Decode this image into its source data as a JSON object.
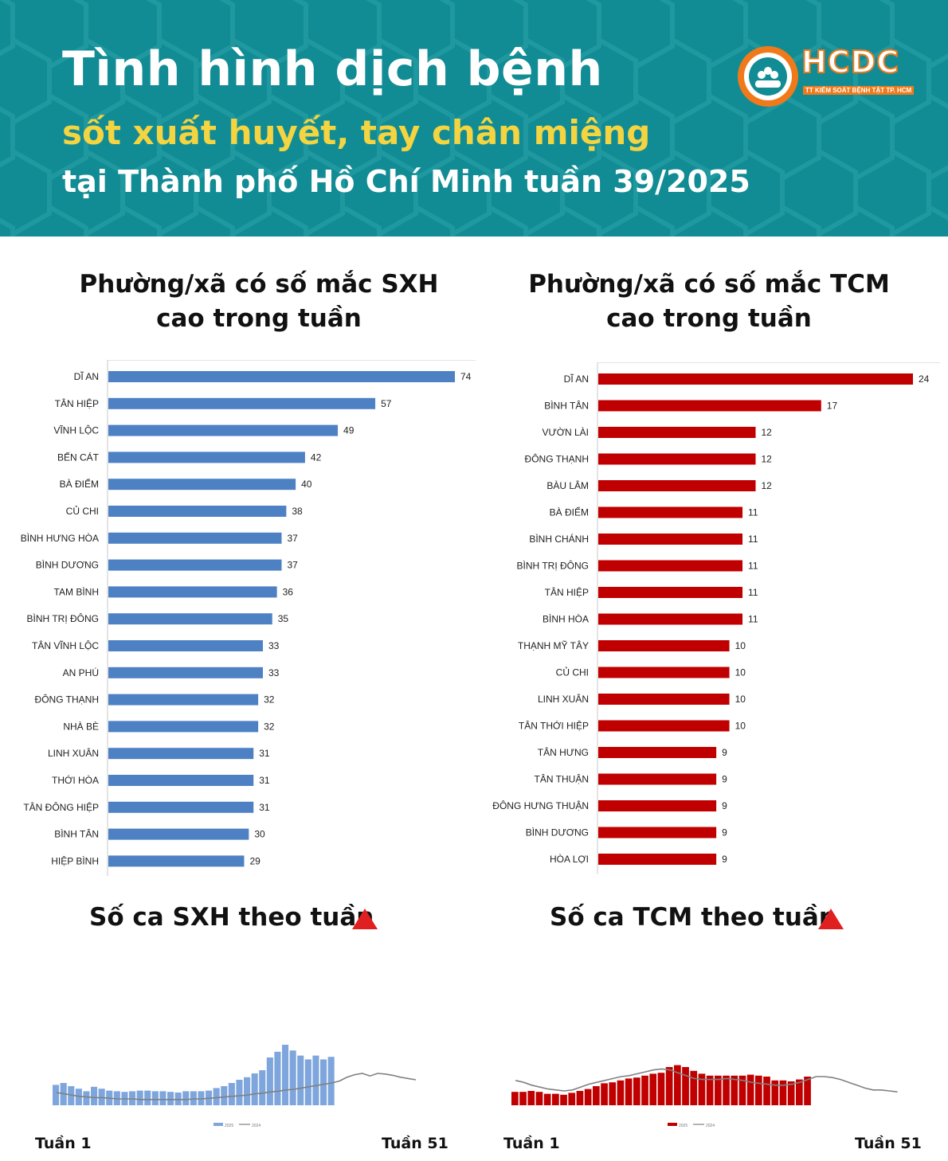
{
  "header": {
    "title": "Tình hình dịch bệnh",
    "subtitle": "sốt xuất huyết, tay chân miệng",
    "subtitle2": "tại Thành phố Hồ Chí Minh tuần 39/2025",
    "logo_text": "HCDC",
    "logo_caption": "TT KIỂM SOÁT BỆNH TẬT TP. HCM"
  },
  "colors": {
    "header_bg": "#128c94",
    "sxh_bar": "#4e81c4",
    "sxh_weekly": "#7ea6dd",
    "tcm_bar": "#c00000",
    "line_2024": "#808080",
    "highlight": "#f4d440",
    "logo_orange": "#f07a1a"
  },
  "icons": {
    "trend": "red-up-triangle-icon",
    "logo": "hcdc-logo-icon"
  },
  "sections": {
    "sxh_wards_title": "Phường/xã có số mắc SXH cao trong tuần",
    "tcm_wards_title": "Phường/xã có số mắc TCM cao trong tuần",
    "sxh_weekly_title": "Số ca SXH theo tuần",
    "tcm_weekly_title": "Số ca TCM theo tuần",
    "week_start": "Tuần 1",
    "week_end": "Tuần 51"
  },
  "chart_data": [
    {
      "type": "bar",
      "orientation": "horizontal",
      "title": "Phường/xã có số mắc SXH cao trong tuần",
      "categories": [
        "DĨ AN",
        "TÂN HIỆP",
        "VĨNH LỘC",
        "BẾN CÁT",
        "BÀ ĐIỂM",
        "CỦ CHI",
        "BÌNH HƯNG HÒA",
        "BÌNH DƯƠNG",
        "TAM BÌNH",
        "BÌNH TRỊ ĐÔNG",
        "TÂN VĨNH LỘC",
        "AN PHÚ",
        "ĐÔNG THẠNH",
        "NHÀ BÈ",
        "LINH XUÂN",
        "THỚI HÒA",
        "TÂN ĐÔNG HIỆP",
        "BÌNH TÂN",
        "HIỆP BÌNH"
      ],
      "values": [
        74,
        57,
        49,
        42,
        40,
        38,
        37,
        37,
        36,
        35,
        33,
        33,
        32,
        32,
        31,
        31,
        31,
        30,
        29
      ],
      "xlim": [
        0,
        80
      ],
      "data_labels": true,
      "color": "#4e81c4"
    },
    {
      "type": "bar",
      "orientation": "horizontal",
      "title": "Phường/xã có số mắc TCM cao trong tuần",
      "categories": [
        "DĨ AN",
        "BÌNH TÂN",
        "VƯỜN LÀI",
        "ĐÔNG THẠNH",
        "BÀU LÂM",
        "BÀ ĐIỂM",
        "BÌNH CHÁNH",
        "BÌNH TRỊ ĐÔNG",
        "TÂN HIỆP",
        "BÌNH HÒA",
        "THẠNH MỸ TÂY",
        "CỦ CHI",
        "LINH XUÂN",
        "TÂN THỚI HIỆP",
        "TÂN HƯNG",
        "TÂN THUẬN",
        "ĐÔNG HƯNG THUẬN",
        "BÌNH DƯƠNG",
        "HÒA LỢI"
      ],
      "values": [
        24,
        17,
        12,
        12,
        12,
        11,
        11,
        11,
        11,
        11,
        10,
        10,
        10,
        10,
        9,
        9,
        9,
        9,
        9
      ],
      "xlim": [
        0,
        26
      ],
      "data_labels": true,
      "color": "#c00000"
    },
    {
      "type": "bar",
      "title": "Số ca SXH theo tuần",
      "x_range": [
        "Tuần 1",
        "Tuần 51"
      ],
      "series": [
        {
          "name": "2025",
          "kind": "bar",
          "values": [
            32,
            35,
            30,
            26,
            22,
            29,
            26,
            23,
            22,
            21,
            22,
            23,
            23,
            22,
            22,
            21,
            20,
            22,
            22,
            22,
            23,
            27,
            30,
            35,
            40,
            44,
            50,
            55,
            75,
            84,
            95,
            86,
            78,
            72,
            78,
            72,
            76
          ]
        },
        {
          "name": "2024",
          "kind": "line",
          "values": [
            20,
            18,
            16,
            14,
            13,
            12,
            12,
            11,
            10,
            10,
            10,
            9,
            9,
            9,
            9,
            9,
            9,
            9,
            10,
            10,
            11,
            12,
            13,
            14,
            15,
            16,
            18,
            19,
            21,
            22,
            24,
            25,
            27,
            29,
            31,
            33,
            35,
            38,
            44,
            48,
            50,
            46,
            50,
            49,
            47,
            44,
            42,
            40
          ]
        }
      ],
      "legend": "bottom"
    },
    {
      "type": "bar",
      "title": "Số ca TCM theo tuần",
      "x_range": [
        "Tuần 1",
        "Tuần 51"
      ],
      "series": [
        {
          "name": "2025",
          "kind": "bar",
          "values": [
            14,
            14,
            15,
            14,
            12,
            12,
            11,
            13,
            15,
            17,
            20,
            23,
            24,
            26,
            28,
            29,
            31,
            33,
            34,
            40,
            42,
            40,
            36,
            33,
            31,
            31,
            31,
            31,
            31,
            32,
            31,
            30,
            26,
            26,
            25,
            27,
            30
          ]
        },
        {
          "name": "2024",
          "kind": "line",
          "values": [
            26,
            24,
            21,
            19,
            17,
            16,
            15,
            16,
            19,
            22,
            24,
            26,
            28,
            30,
            31,
            33,
            35,
            37,
            38,
            37,
            34,
            31,
            28,
            27,
            27,
            27,
            28,
            27,
            26,
            24,
            23,
            22,
            21,
            21,
            22,
            24,
            27,
            30,
            30,
            29,
            27,
            24,
            21,
            18,
            16,
            16,
            15,
            14
          ]
        }
      ],
      "legend": "bottom"
    }
  ]
}
